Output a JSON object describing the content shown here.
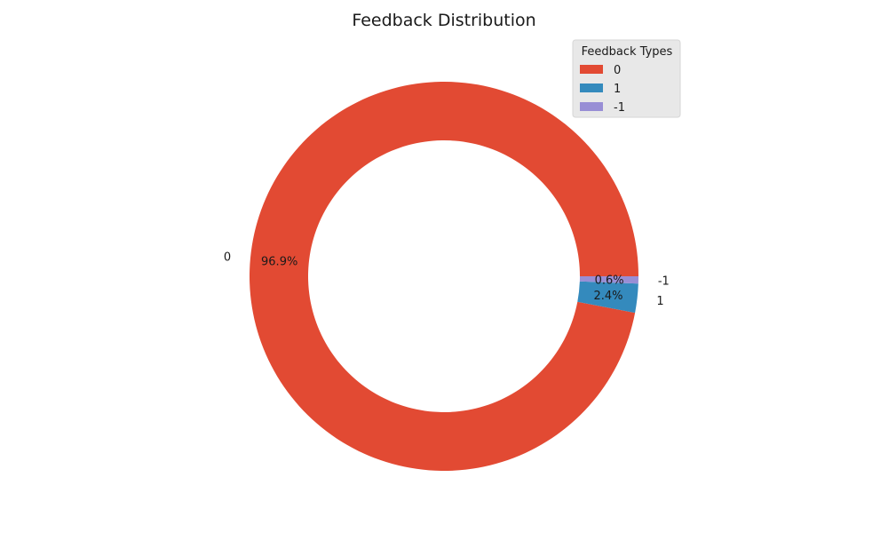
{
  "chart_data": {
    "type": "pie",
    "style": "donut",
    "title": "Feedback Distribution",
    "categories": [
      "0",
      "1",
      "-1"
    ],
    "values": [
      96.9,
      2.4,
      0.6
    ],
    "value_labels": [
      "96.9%",
      "2.4%",
      "0.6%"
    ],
    "colors": [
      "#E24A33",
      "#348ABD",
      "#988ED5"
    ],
    "legend": {
      "title": "Feedback Types",
      "placement": "top-right"
    }
  }
}
